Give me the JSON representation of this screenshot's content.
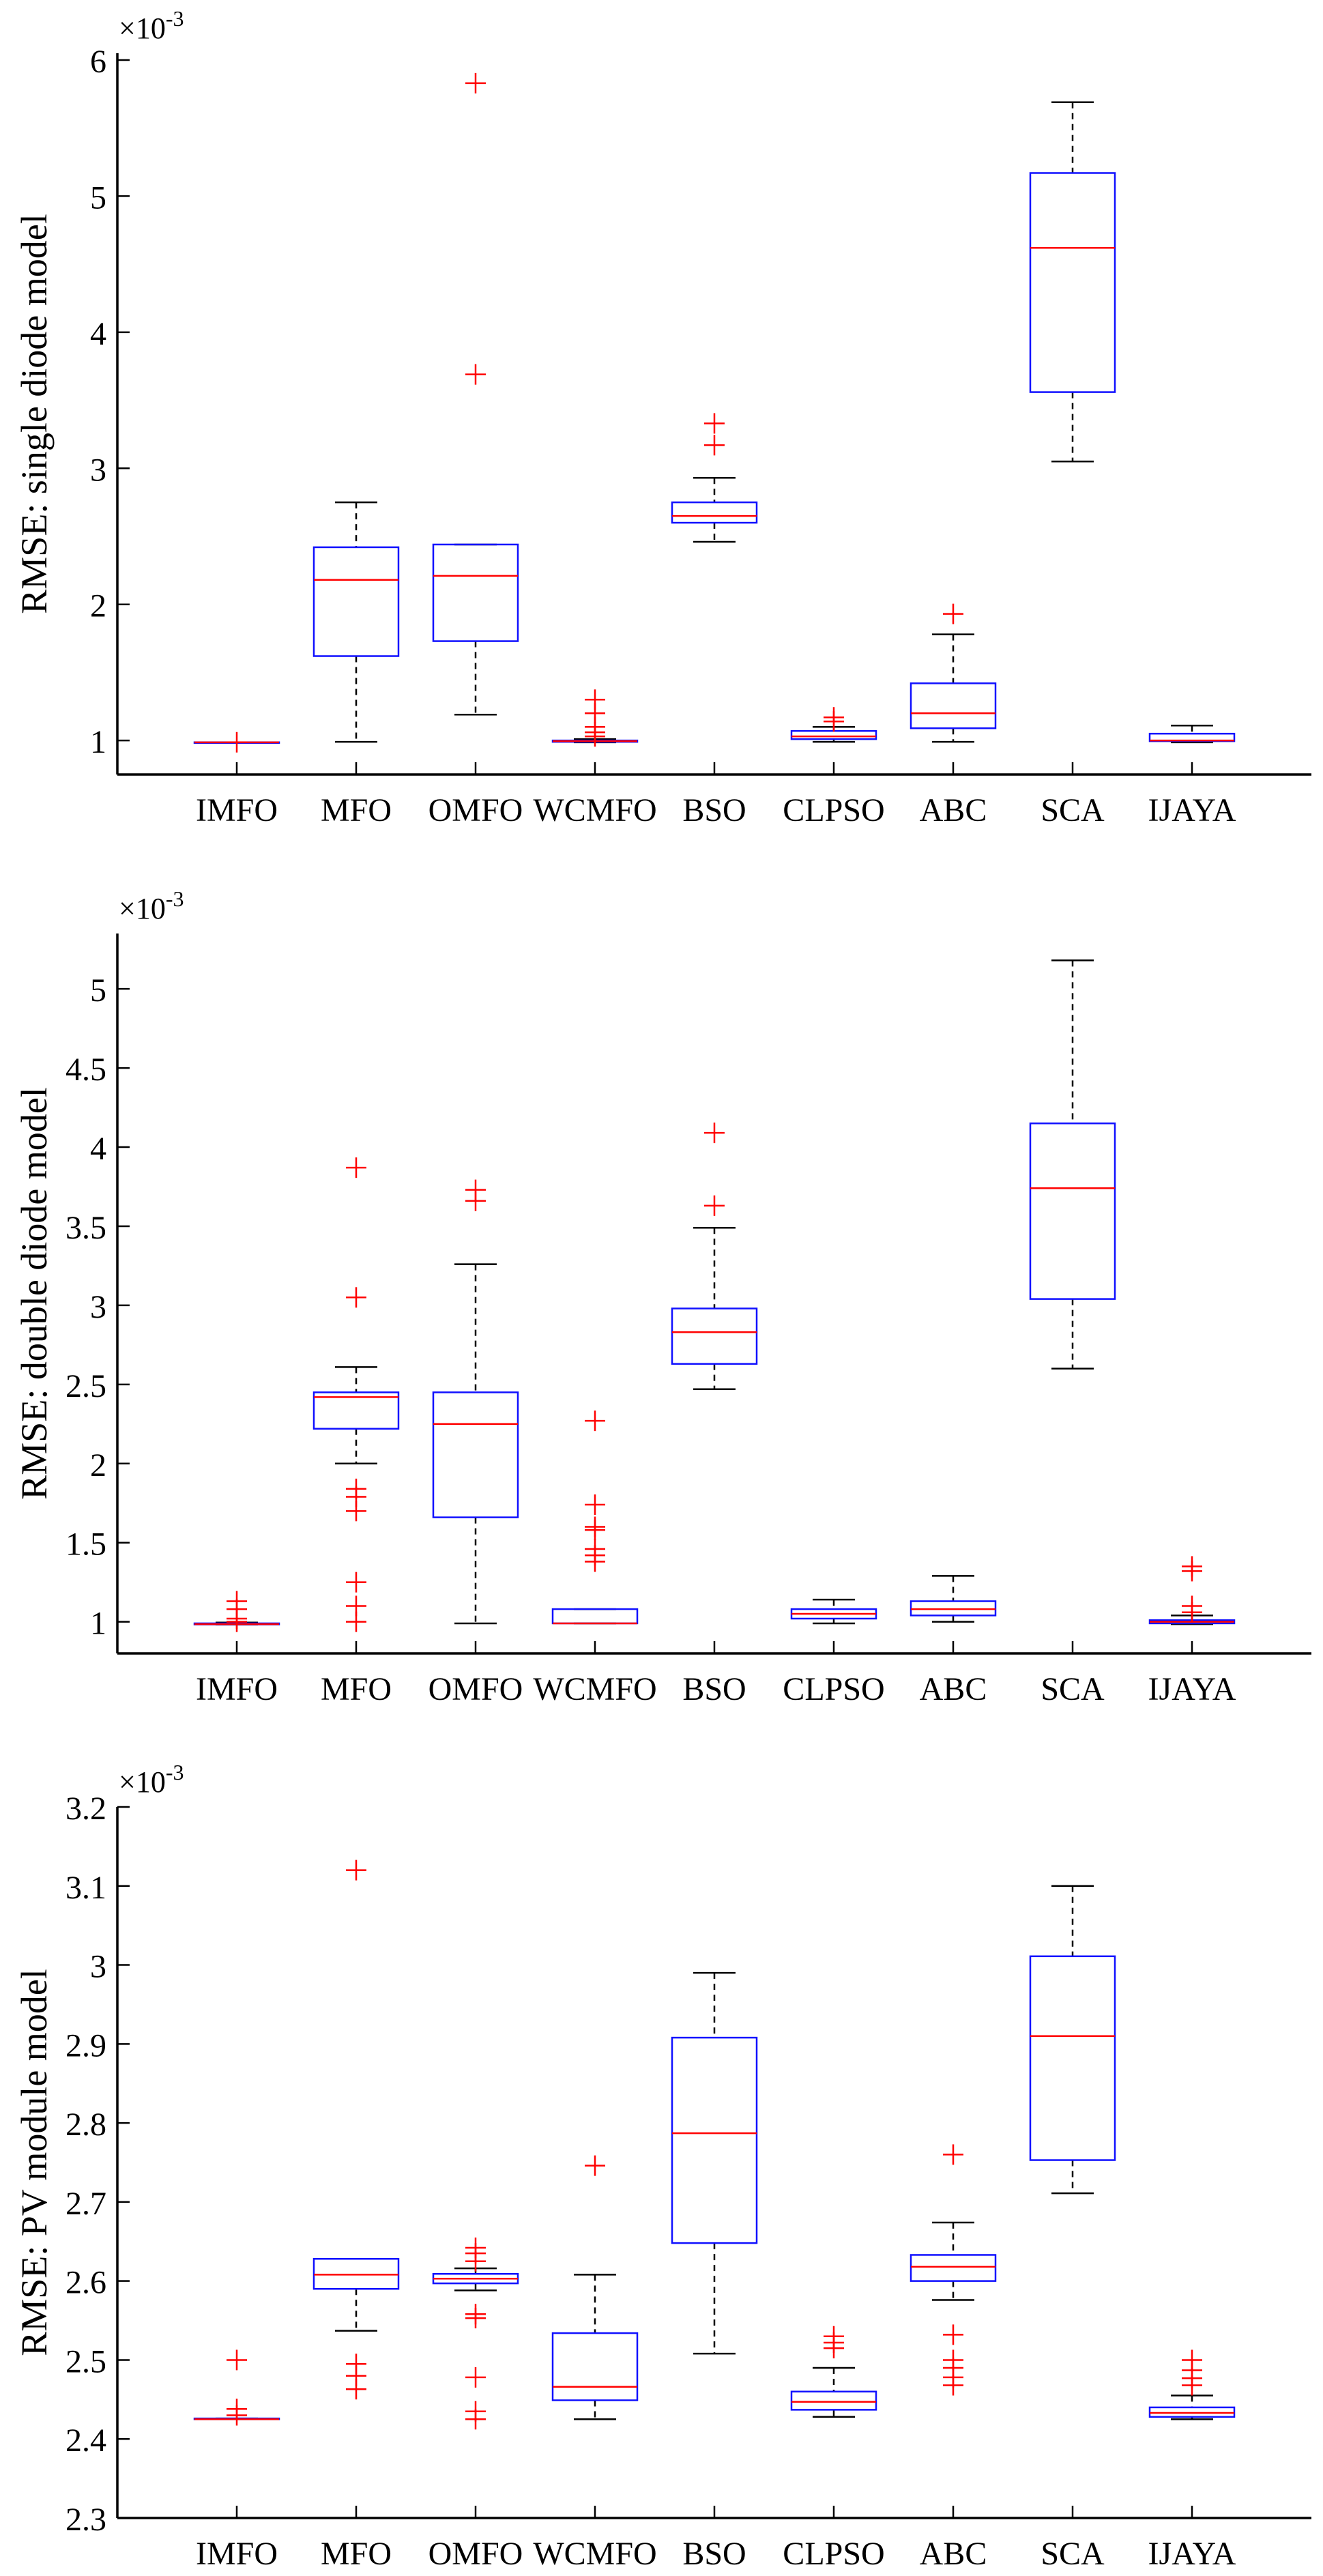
{
  "chart_data": [
    {
      "type": "box",
      "ylabel": "RMSE: single diode model",
      "exponent_label": "×10",
      "exponent_power": "-3",
      "ylim": [
        0.75,
        6.05
      ],
      "yticks": [
        1,
        2,
        3,
        4,
        5,
        6
      ],
      "ytick_labels": [
        "1",
        "2",
        "3",
        "4",
        "5",
        "6"
      ],
      "categories": [
        "IMFO",
        "MFO",
        "OMFO",
        "WCMFO",
        "BSO",
        "CLPSO",
        "ABC",
        "SCA",
        "IJAYA"
      ],
      "boxes": [
        {
          "name": "IMFO",
          "min": 0.986,
          "q1": 0.986,
          "median": 0.986,
          "q3": 0.987,
          "max": 0.987,
          "outliers": [
            0.987
          ]
        },
        {
          "name": "MFO",
          "min": 0.99,
          "q1": 1.62,
          "median": 2.18,
          "q3": 2.42,
          "max": 2.75,
          "outliers": []
        },
        {
          "name": "OMFO",
          "min": 1.19,
          "q1": 1.73,
          "median": 2.21,
          "q3": 2.44,
          "max": 2.44,
          "outliers": [
            3.69,
            5.83
          ]
        },
        {
          "name": "WCMFO",
          "min": 0.986,
          "q1": 0.99,
          "median": 0.995,
          "q3": 1.0,
          "max": 1.01,
          "outliers": [
            1.03,
            1.06,
            1.1,
            1.2,
            1.3
          ]
        },
        {
          "name": "BSO",
          "min": 2.46,
          "q1": 2.6,
          "median": 2.65,
          "q3": 2.75,
          "max": 2.93,
          "outliers": [
            3.17,
            3.33
          ]
        },
        {
          "name": "CLPSO",
          "min": 0.99,
          "q1": 1.01,
          "median": 1.03,
          "q3": 1.07,
          "max": 1.1,
          "outliers": [
            1.14,
            1.17
          ]
        },
        {
          "name": "ABC",
          "min": 0.99,
          "q1": 1.09,
          "median": 1.2,
          "q3": 1.42,
          "max": 1.78,
          "outliers": [
            1.93
          ]
        },
        {
          "name": "SCA",
          "min": 3.05,
          "q1": 3.56,
          "median": 4.62,
          "q3": 5.17,
          "max": 5.69,
          "outliers": []
        },
        {
          "name": "IJAYA",
          "min": 0.986,
          "q1": 0.995,
          "median": 1.0,
          "q3": 1.05,
          "max": 1.11,
          "outliers": []
        }
      ]
    },
    {
      "type": "box",
      "ylabel": "RMSE: double diode model",
      "exponent_label": "×10",
      "exponent_power": "-3",
      "ylim": [
        0.8,
        5.35
      ],
      "yticks": [
        1,
        1.5,
        2,
        2.5,
        3,
        3.5,
        4,
        4.5,
        5
      ],
      "ytick_labels": [
        "1",
        "1.5",
        "2",
        "2.5",
        "3",
        "3.5",
        "4",
        "4.5",
        "5"
      ],
      "categories": [
        "IMFO",
        "MFO",
        "OMFO",
        "WCMFO",
        "BSO",
        "CLPSO",
        "ABC",
        "SCA",
        "IJAYA"
      ],
      "boxes": [
        {
          "name": "IMFO",
          "min": 0.982,
          "q1": 0.983,
          "median": 0.985,
          "q3": 0.99,
          "max": 0.995,
          "outliers": [
            1.0,
            1.02,
            1.08,
            1.13
          ]
        },
        {
          "name": "MFO",
          "min": 2.0,
          "q1": 2.22,
          "median": 2.42,
          "q3": 2.45,
          "max": 2.61,
          "outliers": [
            1.0,
            1.1,
            1.25,
            1.7,
            1.79,
            1.84,
            3.05,
            3.87
          ]
        },
        {
          "name": "OMFO",
          "min": 0.99,
          "q1": 1.66,
          "median": 2.25,
          "q3": 2.45,
          "max": 3.26,
          "outliers": [
            3.66,
            3.73
          ]
        },
        {
          "name": "WCMFO",
          "min": 0.99,
          "q1": 0.99,
          "median": 0.99,
          "q3": 1.08,
          "max": 1.08,
          "outliers": [
            1.38,
            1.42,
            1.46,
            1.58,
            1.6,
            1.74,
            2.27
          ]
        },
        {
          "name": "BSO",
          "min": 2.47,
          "q1": 2.63,
          "median": 2.83,
          "q3": 2.98,
          "max": 3.49,
          "outliers": [
            3.63,
            4.09
          ]
        },
        {
          "name": "CLPSO",
          "min": 0.99,
          "q1": 1.02,
          "median": 1.05,
          "q3": 1.08,
          "max": 1.14,
          "outliers": []
        },
        {
          "name": "ABC",
          "min": 1.0,
          "q1": 1.04,
          "median": 1.08,
          "q3": 1.13,
          "max": 1.29,
          "outliers": []
        },
        {
          "name": "SCA",
          "min": 2.6,
          "q1": 3.04,
          "median": 3.74,
          "q3": 4.15,
          "max": 5.18,
          "outliers": []
        },
        {
          "name": "IJAYA",
          "min": 0.985,
          "q1": 0.99,
          "median": 1.0,
          "q3": 1.01,
          "max": 1.04,
          "outliers": [
            1.06,
            1.1,
            1.32,
            1.35
          ]
        }
      ]
    },
    {
      "type": "box",
      "ylabel": "RMSE: PV module model",
      "exponent_label": "×10",
      "exponent_power": "-3",
      "ylim": [
        2.3,
        3.2
      ],
      "yticks": [
        2.3,
        2.4,
        2.5,
        2.6,
        2.7,
        2.8,
        2.9,
        3,
        3.1,
        3.2
      ],
      "ytick_labels": [
        "2.3",
        "2.4",
        "2.5",
        "2.6",
        "2.7",
        "2.8",
        "2.9",
        "3",
        "3.1",
        "3.2"
      ],
      "categories": [
        "IMFO",
        "MFO",
        "OMFO",
        "WCMFO",
        "BSO",
        "CLPSO",
        "ABC",
        "SCA",
        "IJAYA"
      ],
      "boxes": [
        {
          "name": "IMFO",
          "min": 2.425,
          "q1": 2.425,
          "median": 2.425,
          "q3": 2.426,
          "max": 2.426,
          "outliers": [
            2.43,
            2.438,
            2.5
          ]
        },
        {
          "name": "MFO",
          "min": 2.537,
          "q1": 2.59,
          "median": 2.608,
          "q3": 2.628,
          "max": 2.628,
          "outliers": [
            2.463,
            2.48,
            2.495,
            3.12
          ]
        },
        {
          "name": "OMFO",
          "min": 2.588,
          "q1": 2.597,
          "median": 2.603,
          "q3": 2.609,
          "max": 2.616,
          "outliers": [
            2.425,
            2.435,
            2.478,
            2.553,
            2.558,
            2.625,
            2.635,
            2.642
          ]
        },
        {
          "name": "WCMFO",
          "min": 2.425,
          "q1": 2.449,
          "median": 2.466,
          "q3": 2.534,
          "max": 2.608,
          "outliers": [
            2.746
          ]
        },
        {
          "name": "BSO",
          "min": 2.508,
          "q1": 2.648,
          "median": 2.787,
          "q3": 2.908,
          "max": 2.99,
          "outliers": []
        },
        {
          "name": "CLPSO",
          "min": 2.428,
          "q1": 2.437,
          "median": 2.447,
          "q3": 2.46,
          "max": 2.49,
          "outliers": [
            2.515,
            2.522,
            2.53
          ]
        },
        {
          "name": "ABC",
          "min": 2.576,
          "q1": 2.6,
          "median": 2.618,
          "q3": 2.633,
          "max": 2.674,
          "outliers": [
            2.468,
            2.478,
            2.49,
            2.5,
            2.532,
            2.76
          ]
        },
        {
          "name": "SCA",
          "min": 2.711,
          "q1": 2.753,
          "median": 2.91,
          "q3": 3.011,
          "max": 3.1,
          "outliers": []
        },
        {
          "name": "IJAYA",
          "min": 2.425,
          "q1": 2.428,
          "median": 2.433,
          "q3": 2.44,
          "max": 2.455,
          "outliers": [
            2.468,
            2.477,
            2.487,
            2.5
          ]
        }
      ]
    }
  ]
}
